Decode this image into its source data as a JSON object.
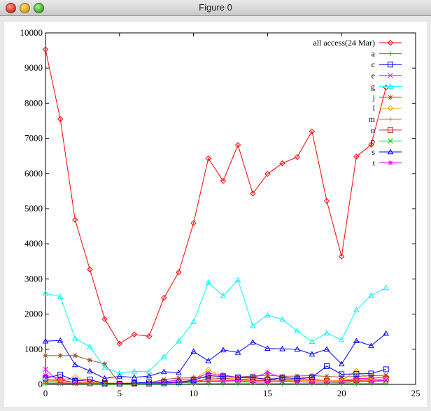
{
  "window": {
    "title": "Figure 0"
  },
  "chart_data": {
    "type": "line",
    "xlim": [
      0,
      25
    ],
    "ylim": [
      0,
      10000
    ],
    "x_ticks": [
      0,
      5,
      10,
      15,
      20,
      25
    ],
    "y_ticks": [
      0,
      1000,
      2000,
      3000,
      4000,
      5000,
      6000,
      7000,
      8000,
      9000,
      10000
    ],
    "grid": false,
    "legend_position": "top-right",
    "x": [
      0,
      1,
      2,
      3,
      4,
      5,
      6,
      7,
      8,
      9,
      10,
      11,
      12,
      13,
      14,
      15,
      16,
      17,
      18,
      19,
      20,
      21,
      22,
      23
    ],
    "series": [
      {
        "name": "all access(24 Mar)",
        "color": "#ff0000",
        "marker": "diamond",
        "values": [
          9530,
          7550,
          4680,
          3270,
          1860,
          1160,
          1420,
          1370,
          2460,
          3190,
          4590,
          6430,
          5790,
          6810,
          5430,
          5990,
          6290,
          6470,
          7200,
          5220,
          3640,
          6480,
          6820,
          8450
        ]
      },
      {
        "name": "a",
        "color": "#00c000",
        "marker": "plus",
        "values": [
          30,
          20,
          20,
          10,
          10,
          10,
          10,
          10,
          10,
          10,
          20,
          20,
          20,
          20,
          20,
          20,
          20,
          20,
          20,
          20,
          20,
          20,
          20,
          20
        ]
      },
      {
        "name": "c",
        "color": "#0000ff",
        "marker": "square",
        "values": [
          170,
          280,
          100,
          140,
          20,
          20,
          40,
          60,
          60,
          60,
          120,
          250,
          230,
          200,
          200,
          140,
          190,
          170,
          200,
          520,
          290,
          300,
          310,
          430
        ]
      },
      {
        "name": "e",
        "color": "#ff00ff",
        "marker": "x",
        "values": [
          430,
          40,
          30,
          30,
          30,
          30,
          30,
          30,
          40,
          50,
          80,
          90,
          100,
          110,
          60,
          70,
          90,
          80,
          60,
          70,
          60,
          80,
          90,
          120
        ]
      },
      {
        "name": "g",
        "color": "#00ffff",
        "marker": "triangle",
        "values": [
          2590,
          2500,
          1310,
          1070,
          480,
          320,
          370,
          370,
          790,
          1230,
          1780,
          2900,
          2520,
          2970,
          1670,
          1970,
          1850,
          1520,
          1220,
          1460,
          1270,
          2120,
          2530,
          2750
        ]
      },
      {
        "name": "j",
        "color": "#a0522d",
        "marker": "asterisk",
        "values": [
          820,
          820,
          820,
          690,
          580,
          40,
          20,
          40,
          140,
          180,
          190,
          200,
          220,
          210,
          240,
          260,
          230,
          240,
          250,
          230,
          210,
          230,
          250,
          260
        ]
      },
      {
        "name": "l",
        "color": "#ffa500",
        "marker": "diamond",
        "values": [
          100,
          100,
          220,
          60,
          30,
          20,
          20,
          30,
          60,
          70,
          130,
          420,
          190,
          150,
          160,
          180,
          120,
          110,
          100,
          100,
          110,
          390,
          120,
          160
        ]
      },
      {
        "name": "m",
        "color": "#ff8040",
        "marker": "plus",
        "values": [
          80,
          70,
          60,
          50,
          40,
          40,
          40,
          50,
          60,
          80,
          90,
          100,
          110,
          110,
          100,
          100,
          110,
          110,
          110,
          100,
          90,
          100,
          110,
          120
        ]
      },
      {
        "name": "n",
        "color": "#d00000",
        "marker": "square",
        "values": [
          130,
          120,
          60,
          30,
          30,
          20,
          20,
          20,
          30,
          60,
          80,
          150,
          170,
          140,
          120,
          120,
          150,
          130,
          110,
          100,
          100,
          120,
          130,
          160
        ]
      },
      {
        "name": "p",
        "color": "#00dd00",
        "marker": "x",
        "values": [
          40,
          40,
          30,
          30,
          20,
          20,
          20,
          20,
          30,
          40,
          60,
          80,
          80,
          70,
          60,
          70,
          80,
          70,
          60,
          60,
          50,
          70,
          80,
          100
        ]
      },
      {
        "name": "s",
        "color": "#0000ff",
        "marker": "triangle",
        "values": [
          1230,
          1250,
          560,
          380,
          170,
          230,
          200,
          240,
          360,
          330,
          940,
          670,
          980,
          910,
          1200,
          1020,
          1010,
          1000,
          860,
          1000,
          580,
          1240,
          1100,
          1450
        ]
      },
      {
        "name": "t",
        "color": "#ff00ff",
        "marker": "asterisk",
        "values": [
          260,
          160,
          140,
          80,
          40,
          40,
          40,
          40,
          80,
          120,
          160,
          310,
          270,
          200,
          180,
          340,
          190,
          170,
          150,
          100,
          110,
          170,
          170,
          210
        ]
      }
    ]
  }
}
